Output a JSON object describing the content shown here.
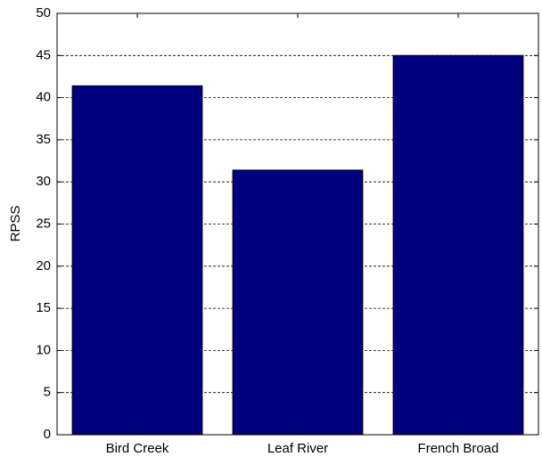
{
  "chart_data": {
    "type": "bar",
    "y_label": "RPSS",
    "categories": [
      "Bird Creek",
      "Leaf River",
      "French Broad"
    ],
    "values": [
      41.4,
      31.4,
      45.0
    ],
    "color": "#00007f",
    "ylim": [
      0,
      50
    ],
    "yticks": [
      0,
      5,
      10,
      15,
      20,
      25,
      30,
      35,
      40,
      45,
      50
    ],
    "grid": true
  }
}
